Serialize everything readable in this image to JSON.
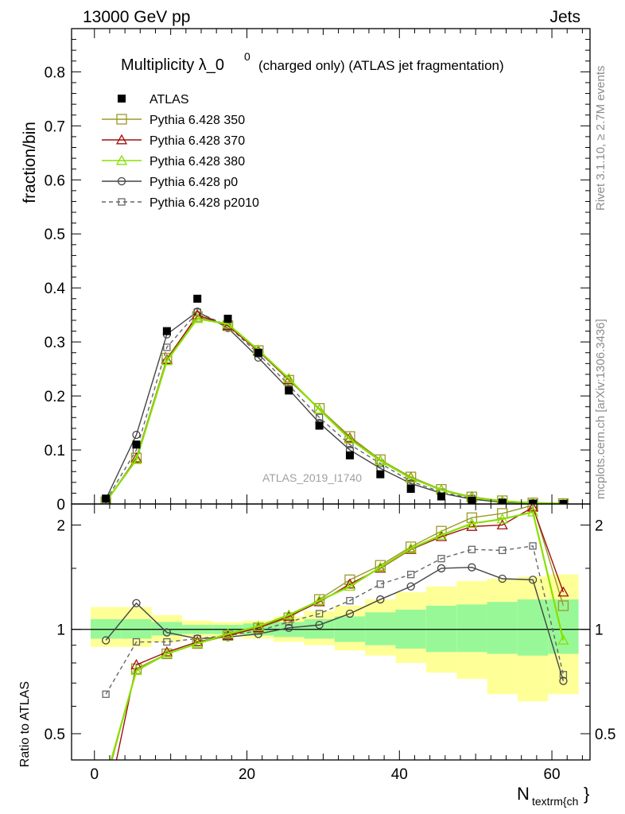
{
  "header": {
    "energy": "13000 GeV pp",
    "category": "Jets"
  },
  "side_labels": {
    "rivet": "Rivet 3.1.10, ≥ 2.7M events",
    "mcplots": "mcplots.cern.ch [arXiv:1306.3436]"
  },
  "watermark": "ATLAS_2019_I1740",
  "colors": {
    "p350": "#9a9a2a",
    "p370": "#a01010",
    "p380": "#88e000",
    "p0": "#444444",
    "p2010": "#666666",
    "green": "#98f898",
    "yellow": "#ffff98"
  },
  "chart_data": [
    {
      "type": "line",
      "title_main": "Multiplicity λ_0",
      "title_sup": "0",
      "title_rest": "(charged only) (ATLAS jet fragmentation)",
      "ylabel": "fraction/bin",
      "xlim": [
        -3,
        65
      ],
      "ylim": [
        0,
        0.88
      ],
      "yticks": [
        {
          "v": 0,
          "t": "0"
        },
        {
          "v": 0.1,
          "t": "0.1"
        },
        {
          "v": 0.2,
          "t": "0.2"
        },
        {
          "v": 0.3,
          "t": "0.3"
        },
        {
          "v": 0.4,
          "t": "0.4"
        },
        {
          "v": 0.5,
          "t": "0.5"
        },
        {
          "v": 0.6,
          "t": "0.6"
        },
        {
          "v": 0.7,
          "t": "0.7"
        },
        {
          "v": 0.8,
          "t": "0.8"
        }
      ],
      "x": [
        1.5,
        5.5,
        9.5,
        13.5,
        17.5,
        21.5,
        25.5,
        29.5,
        33.5,
        37.5,
        41.5,
        45.5,
        49.5,
        53.5,
        57.5,
        61.5
      ],
      "legend": [
        "ATLAS",
        "Pythia 6.428 350",
        "Pythia 6.428 370",
        "Pythia 6.428 380",
        "Pythia 6.428 p0",
        "Pythia 6.428 p2010"
      ],
      "series": [
        {
          "name": "ATLAS",
          "values": [
            0.01,
            0.11,
            0.32,
            0.38,
            0.343,
            0.28,
            0.21,
            0.145,
            0.09,
            0.055,
            0.028,
            0.014,
            0.006,
            0.002,
            0.0007,
            0.0002
          ]
        },
        {
          "name": "Pythia 6.428 350",
          "values": [
            0.004,
            0.085,
            0.27,
            0.347,
            0.33,
            0.284,
            0.229,
            0.177,
            0.125,
            0.082,
            0.05,
            0.027,
            0.013,
            0.006,
            0.002,
            0.0007
          ]
        },
        {
          "name": "Pythia 6.428 370",
          "values": [
            0.003,
            0.085,
            0.267,
            0.35,
            0.33,
            0.283,
            0.23,
            0.175,
            0.122,
            0.08,
            0.049,
            0.026,
            0.013,
            0.005,
            0.002,
            0.0007
          ]
        },
        {
          "name": "Pythia 6.428 380",
          "values": [
            0.004,
            0.082,
            0.265,
            0.343,
            0.333,
            0.285,
            0.232,
            0.175,
            0.12,
            0.08,
            0.048,
            0.026,
            0.012,
            0.005,
            0.002,
            0.0007
          ]
        },
        {
          "name": "Pythia 6.428 p0",
          "values": [
            0.009,
            0.128,
            0.314,
            0.356,
            0.326,
            0.271,
            0.212,
            0.15,
            0.1,
            0.066,
            0.038,
            0.02,
            0.009,
            0.003,
            0.001,
            0.0003
          ]
        },
        {
          "name": "Pythia 6.428 p2010",
          "values": [
            0.006,
            0.1,
            0.29,
            0.355,
            0.33,
            0.278,
            0.22,
            0.16,
            0.11,
            0.075,
            0.042,
            0.022,
            0.01,
            0.004,
            0.0012,
            0.0004
          ]
        }
      ]
    },
    {
      "type": "line",
      "ylabel": "Ratio to ATLAS",
      "xlabel": "N",
      "xlabel_sub": "textrm{ch",
      "xlabel_tail": "}",
      "xlim": [
        -3,
        65
      ],
      "ylim": [
        0.42,
        2.3
      ],
      "log_y": true,
      "yticks": [
        {
          "v": 0.5,
          "t": "0.5"
        },
        {
          "v": 1,
          "t": "1"
        },
        {
          "v": 2,
          "t": "2"
        }
      ],
      "xticks": [
        {
          "v": 0,
          "t": "0"
        },
        {
          "v": 20,
          "t": "20"
        },
        {
          "v": 40,
          "t": "40"
        },
        {
          "v": 60,
          "t": "60"
        }
      ],
      "x": [
        1.5,
        5.5,
        9.5,
        13.5,
        17.5,
        21.5,
        25.5,
        29.5,
        33.5,
        37.5,
        41.5,
        45.5,
        49.5,
        53.5,
        57.5,
        61.5
      ],
      "band_green": [
        [
          0.94,
          1.07
        ],
        [
          0.94,
          1.07
        ],
        [
          0.96,
          1.05
        ],
        [
          0.97,
          1.03
        ],
        [
          0.97,
          1.03
        ],
        [
          0.96,
          1.04
        ],
        [
          0.95,
          1.05
        ],
        [
          0.94,
          1.07
        ],
        [
          0.92,
          1.09
        ],
        [
          0.9,
          1.12
        ],
        [
          0.88,
          1.14
        ],
        [
          0.86,
          1.17
        ],
        [
          0.86,
          1.18
        ],
        [
          0.85,
          1.2
        ],
        [
          0.84,
          1.22
        ],
        [
          0.85,
          1.22
        ]
      ],
      "band_yellow": [
        [
          0.89,
          1.16
        ],
        [
          0.89,
          1.16
        ],
        [
          0.92,
          1.1
        ],
        [
          0.95,
          1.06
        ],
        [
          0.95,
          1.05
        ],
        [
          0.94,
          1.06
        ],
        [
          0.92,
          1.09
        ],
        [
          0.9,
          1.13
        ],
        [
          0.87,
          1.17
        ],
        [
          0.84,
          1.22
        ],
        [
          0.8,
          1.28
        ],
        [
          0.75,
          1.33
        ],
        [
          0.72,
          1.38
        ],
        [
          0.65,
          1.4
        ],
        [
          0.62,
          1.42
        ],
        [
          0.65,
          1.44
        ]
      ],
      "series": [
        {
          "name": "Pythia 6.428 350",
          "values": [
            0.36,
            0.77,
            0.85,
            0.91,
            0.96,
            1.01,
            1.08,
            1.22,
            1.39,
            1.53,
            1.73,
            1.92,
            2.1,
            2.16,
            2.28,
            1.17
          ]
        },
        {
          "name": "Pythia 6.428 370",
          "values": [
            0.3,
            0.79,
            0.86,
            0.92,
            0.96,
            1.01,
            1.09,
            1.2,
            1.35,
            1.5,
            1.7,
            1.85,
            1.98,
            2.0,
            2.25,
            1.28
          ]
        },
        {
          "name": "Pythia 6.428 380",
          "values": [
            0.37,
            0.76,
            0.85,
            0.91,
            0.97,
            1.02,
            1.1,
            1.21,
            1.33,
            1.51,
            1.71,
            1.87,
            2.02,
            2.08,
            2.18,
            0.93
          ]
        },
        {
          "name": "Pythia 6.428 p0",
          "values": [
            0.93,
            1.19,
            0.98,
            0.94,
            0.95,
            0.97,
            1.01,
            1.03,
            1.11,
            1.22,
            1.33,
            1.5,
            1.51,
            1.4,
            1.39,
            0.71
          ]
        },
        {
          "name": "Pythia 6.428 p2010",
          "values": [
            0.65,
            0.92,
            0.92,
            0.94,
            0.96,
            0.99,
            1.05,
            1.11,
            1.21,
            1.35,
            1.44,
            1.6,
            1.7,
            1.69,
            1.74,
            0.74
          ]
        }
      ]
    }
  ]
}
